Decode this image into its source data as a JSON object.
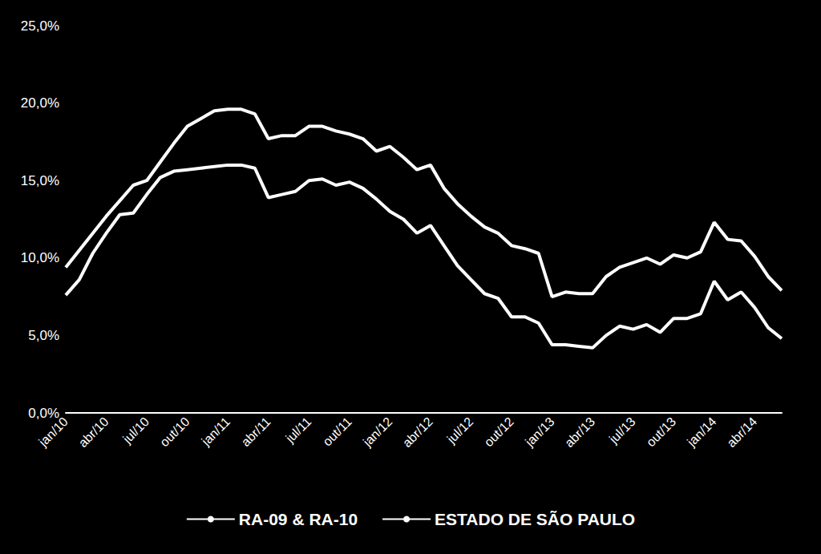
{
  "chart_data": {
    "type": "line",
    "categories": [
      "jan/10",
      null,
      null,
      "abr/10",
      null,
      null,
      "jul/10",
      null,
      null,
      "out/10",
      null,
      null,
      "jan/11",
      null,
      null,
      "abr/11",
      null,
      null,
      "jul/11",
      null,
      null,
      "out/11",
      null,
      null,
      "jan/12",
      null,
      null,
      "abr/12",
      null,
      null,
      "jul/12",
      null,
      null,
      "out/12",
      null,
      null,
      "jan/13",
      null,
      null,
      "abr/13",
      null,
      null,
      "jul/13",
      null,
      null,
      "out/13",
      null,
      null,
      "jan/14",
      null,
      null,
      "abr/14",
      null,
      null
    ],
    "series": [
      {
        "name": "RA-09 & RA-10",
        "color": "#ffffff",
        "values": [
          9.4,
          10.5,
          11.6,
          12.7,
          13.7,
          14.7,
          15.0,
          16.2,
          17.4,
          18.5,
          19.0,
          19.5,
          19.6,
          19.6,
          19.3,
          17.7,
          17.9,
          17.9,
          18.5,
          18.5,
          18.2,
          18.0,
          17.7,
          16.9,
          17.2,
          16.5,
          15.7,
          16.0,
          14.5,
          13.5,
          12.7,
          12.0,
          11.6,
          10.8,
          10.6,
          10.3,
          7.5,
          7.8,
          7.7,
          7.7,
          8.8,
          9.4,
          9.7,
          10.0,
          9.6,
          10.2,
          10.0,
          10.4,
          12.3,
          11.2,
          11.1,
          10.1,
          8.8,
          7.9
        ]
      },
      {
        "name": "ESTADO DE SÃO PAULO",
        "color": "#ffffff",
        "values": [
          7.6,
          8.6,
          10.3,
          11.6,
          12.8,
          12.9,
          14.1,
          15.2,
          15.6,
          15.7,
          15.8,
          15.9,
          16.0,
          16.0,
          15.8,
          13.9,
          14.1,
          14.3,
          15.0,
          15.1,
          14.7,
          14.9,
          14.5,
          13.8,
          13.0,
          12.5,
          11.6,
          12.1,
          10.8,
          9.5,
          8.6,
          7.7,
          7.4,
          6.2,
          6.2,
          5.8,
          4.4,
          4.4,
          4.3,
          4.2,
          5.0,
          5.6,
          5.4,
          5.7,
          5.2,
          6.1,
          6.1,
          6.4,
          8.5,
          7.3,
          7.8,
          6.8,
          5.5,
          4.8
        ]
      }
    ],
    "ylim": [
      0,
      25
    ],
    "yticks": [
      {
        "value": 0,
        "label": "0,0%"
      },
      {
        "value": 5,
        "label": "5,0%"
      },
      {
        "value": 10,
        "label": "10,0%"
      },
      {
        "value": 15,
        "label": "15,0%"
      },
      {
        "value": 20,
        "label": "20,0%"
      },
      {
        "value": 25,
        "label": "25,0%"
      }
    ],
    "grid": false,
    "legend": "bottom"
  }
}
